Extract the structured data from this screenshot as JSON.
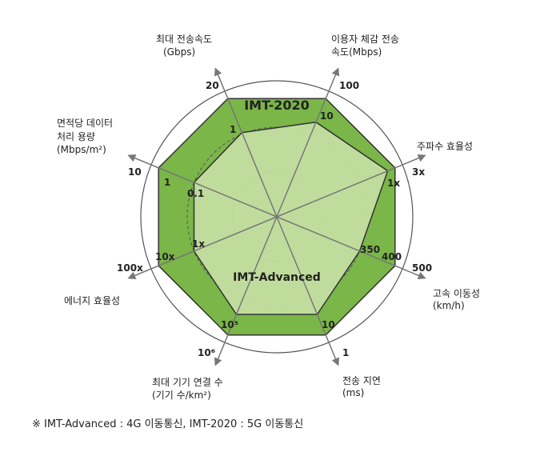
{
  "chart_data": {
    "type": "radar",
    "axes": [
      {
        "name": "최대 전송속도",
        "unit": "(Gbps)",
        "imt_advanced": "1",
        "imt_2020": "20"
      },
      {
        "name": "이용자 체감 전송",
        "name2": "속도",
        "unit": "(Mbps)",
        "imt_advanced": "10",
        "imt_2020": "100"
      },
      {
        "name": "주파수 효율성",
        "imt_advanced": "1x",
        "imt_2020": "3x"
      },
      {
        "name": "고속 이동성",
        "unit": "(km/h)",
        "imt_advanced": "350",
        "imt_2020": "500",
        "extra_tick": "400"
      },
      {
        "name": "전송 지연",
        "unit": "(ms)",
        "imt_advanced": "10",
        "imt_2020": "1"
      },
      {
        "name": "최대 기기 연결 수",
        "unit": "(기기 수/km²)",
        "imt_advanced": "10⁵",
        "imt_2020": "10⁶"
      },
      {
        "name": "에너지 효율성",
        "imt_advanced": "1x",
        "imt_2020": "100x",
        "extra_tick": "10x"
      },
      {
        "name": "면적당 데이터",
        "name2": "처리 용량",
        "unit": "(Mbps/m²)",
        "imt_advanced": "0.1",
        "imt_2020": "10",
        "extra_tick": "1"
      }
    ],
    "series": [
      {
        "name": "IMT-2020",
        "color": "#7ab648"
      },
      {
        "name": "IMT-Advanced",
        "color": "#c6e0a4"
      }
    ]
  },
  "footnote": "※ IMT-Advanced : 4G 이동통신, IMT-2020 : 5G 이동통신"
}
